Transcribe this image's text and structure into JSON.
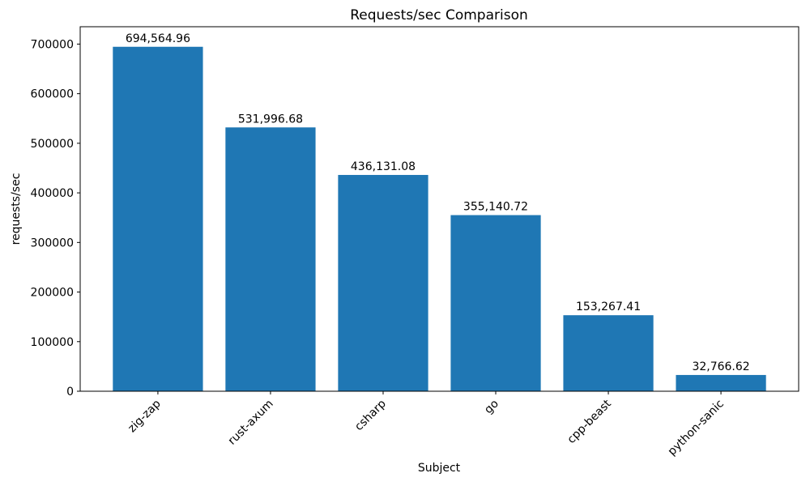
{
  "chart_data": {
    "type": "bar",
    "title": "Requests/sec Comparison",
    "xlabel": "Subject",
    "ylabel": "requests/sec",
    "categories": [
      "zig-zap",
      "rust-axum",
      "csharp",
      "go",
      "cpp-beast",
      "python-sanic"
    ],
    "values": [
      694564.96,
      531996.68,
      436131.08,
      355140.72,
      153267.41,
      32766.62
    ],
    "value_labels": [
      "694,564.96",
      "531,996.68",
      "436,131.08",
      "355,140.72",
      "153,267.41",
      "32,766.62"
    ],
    "bar_color": "#1f77b4",
    "axis_color": "#000000",
    "text_color": "#000000",
    "background_color": "#ffffff",
    "ylim": [
      0,
      735000
    ],
    "yticks": [
      0,
      100000,
      200000,
      300000,
      400000,
      500000,
      600000,
      700000
    ],
    "ytick_labels": [
      "0",
      "100000",
      "200000",
      "300000",
      "400000",
      "500000",
      "600000",
      "700000"
    ],
    "x_tick_rotation": 45,
    "grid": false,
    "legend": "none"
  }
}
